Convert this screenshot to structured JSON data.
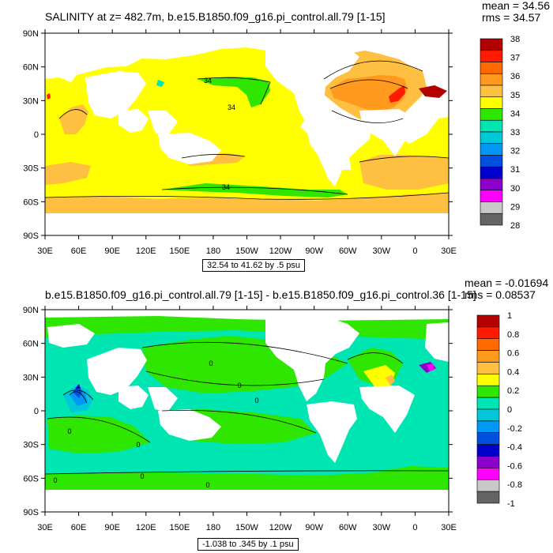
{
  "panels": [
    {
      "title": "SALINITY at z= 482.7m, b.e15.B1850.f09_g16.pi_control.all.79 [1-15]",
      "mean": "mean = 34.56",
      "rms": "rms = 34.57",
      "range_note": "32.54 to 41.62 by .5 psu"
    },
    {
      "title": "b.e15.B1850.f09_g16.pi_control.all.79 [1-15] - b.e15.B1850.f09_g16.pi_control.36 [1-15]",
      "mean": "mean = -0.01694",
      "rms": "rms = 0.08537",
      "range_note": "-1.038 to .345 by .1 psu"
    }
  ],
  "chart_data": [
    {
      "type": "heatmap",
      "title": "SALINITY at z= 482.7m, b.e15.B1850.f09_g16.pi_control.all.79 [1-15]",
      "x_tick_labels": [
        "30E",
        "60E",
        "90E",
        "120E",
        "150E",
        "180",
        "150W",
        "120W",
        "90W",
        "60W",
        "30W",
        "0",
        "30E"
      ],
      "y_tick_labels": [
        "90N",
        "60N",
        "30N",
        "0",
        "30S",
        "60S",
        "90S"
      ],
      "x_range": [
        30,
        390
      ],
      "y_range": [
        -90,
        90
      ],
      "colorbar_labels": [
        "38",
        "37",
        "36",
        "35",
        "34",
        "33",
        "32",
        "31",
        "30",
        "29",
        "28"
      ],
      "colorbar_colors": [
        "#b30000",
        "#ff1a00",
        "#ff6a00",
        "#ff9a1f",
        "#ffbf40",
        "#ffff00",
        "#2ee600",
        "#00e6b3",
        "#00c8d9",
        "#0097f5",
        "#0050e0",
        "#0000cc",
        "#8c00cc",
        "#ff00ff",
        "#c8c8c8",
        "#646464"
      ],
      "contour_labels": [
        "34",
        "34",
        "34"
      ],
      "mean": 34.56,
      "rms": 34.57,
      "units": "psu"
    },
    {
      "type": "heatmap",
      "title": "b.e15.B1850.f09_g16.pi_control.all.79 [1-15] - b.e15.B1850.f09_g16.pi_control.36 [1-15]",
      "x_tick_labels": [
        "30E",
        "60E",
        "90E",
        "120E",
        "150E",
        "180",
        "150W",
        "120W",
        "90W",
        "60W",
        "30W",
        "0",
        "30E"
      ],
      "y_tick_labels": [
        "90N",
        "60N",
        "30N",
        "0",
        "30S",
        "60S",
        "90S"
      ],
      "x_range": [
        30,
        390
      ],
      "y_range": [
        -90,
        90
      ],
      "colorbar_labels": [
        "1",
        "0.8",
        "0.6",
        "0.4",
        "0.2",
        "0",
        "-0.2",
        "-0.4",
        "-0.6",
        "-0.8",
        "-1"
      ],
      "colorbar_colors": [
        "#b30000",
        "#ff1a00",
        "#ff6a00",
        "#ff9a1f",
        "#ffbf40",
        "#ffff00",
        "#2ee600",
        "#00e6b3",
        "#00c8d9",
        "#0097f5",
        "#0050e0",
        "#0000cc",
        "#8c00cc",
        "#ff00ff",
        "#c8c8c8",
        "#646464"
      ],
      "contour_labels": [
        "0",
        "0",
        "0",
        "0",
        "0",
        "0",
        "0",
        "0"
      ],
      "mean": -0.01694,
      "rms": 0.08537,
      "units": "psu"
    }
  ]
}
